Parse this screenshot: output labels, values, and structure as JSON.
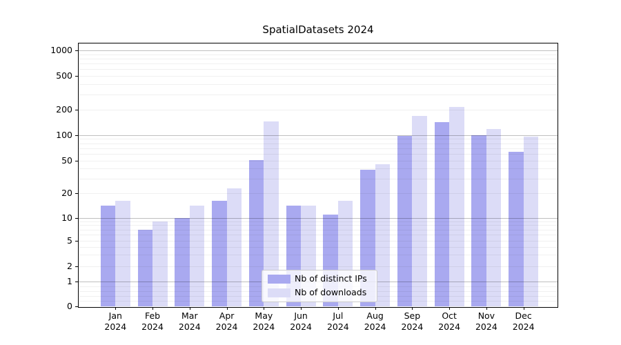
{
  "figure": {
    "title": "SpatialDatasets 2024"
  },
  "chart_data": {
    "type": "bar",
    "title": "SpatialDatasets 2024",
    "xlabel": "",
    "ylabel": "",
    "categories": [
      "Jan 2024",
      "Feb 2024",
      "Mar 2024",
      "Apr 2024",
      "May 2024",
      "Jun 2024",
      "Jul 2024",
      "Aug 2024",
      "Sep 2024",
      "Oct 2024",
      "Nov 2024",
      "Dec 2024"
    ],
    "series": [
      {
        "name": "Nb of distinct IPs",
        "color": "#a9a9f0",
        "values": [
          14,
          7,
          10,
          16,
          51,
          14,
          11,
          39,
          97,
          142,
          100,
          64
        ]
      },
      {
        "name": "Nb of downloads",
        "color": "#dcdcf7",
        "values": [
          16,
          9,
          14,
          23,
          145,
          14,
          16,
          45,
          170,
          215,
          117,
          96
        ]
      }
    ],
    "y_ticks": [
      0,
      1,
      2,
      5,
      10,
      20,
      50,
      100,
      200,
      500,
      1000
    ],
    "yscale": "symlog",
    "ylim": [
      0,
      1250
    ],
    "grid": true,
    "legend_position": "lower center"
  }
}
